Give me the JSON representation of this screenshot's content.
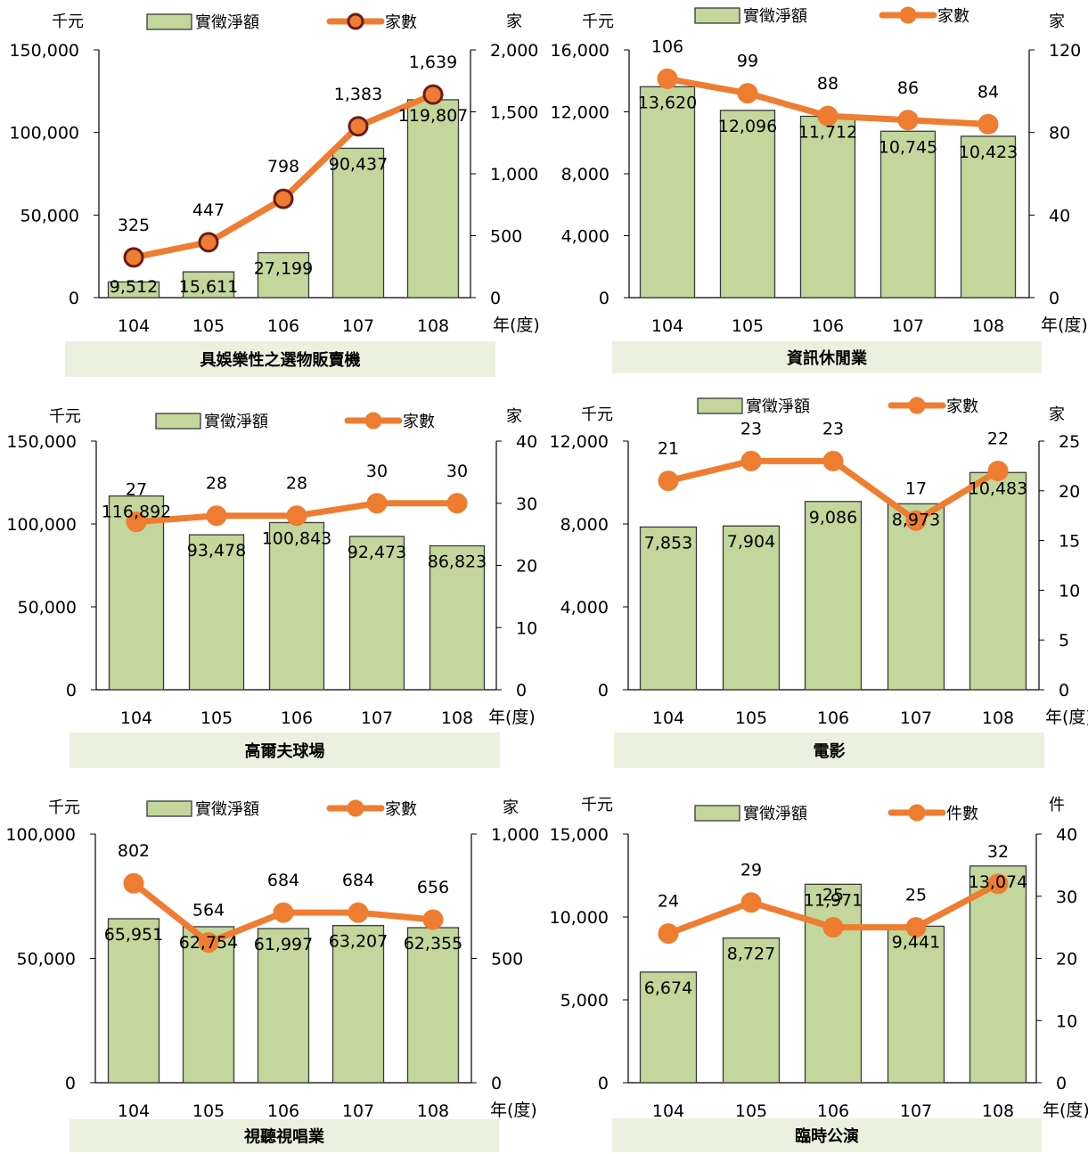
{
  "chart_data": [
    {
      "type": "bar",
      "title": "具娛樂性之選物販賣機",
      "categories": [
        "104",
        "105",
        "106",
        "107",
        "108"
      ],
      "series": [
        {
          "name": "實徵淨額",
          "type": "bar",
          "axis": "left",
          "values": [
            9512,
            15611,
            27199,
            90437,
            119807
          ],
          "labels": [
            "9,512",
            "15,611",
            "27,199",
            "90,437",
            "119,807"
          ]
        },
        {
          "name": "家數",
          "type": "line",
          "axis": "right",
          "values": [
            325,
            447,
            798,
            1383,
            1639
          ],
          "labels": [
            "325",
            "447",
            "798",
            "1,383",
            "1,639"
          ]
        }
      ],
      "y_left": {
        "unit": "千元",
        "ylim": [
          0,
          150000
        ],
        "ticks": [
          "0",
          "50,000",
          "100,000",
          "150,000"
        ]
      },
      "y_right": {
        "unit": "家",
        "ylim": [
          0,
          2000
        ],
        "ticks": [
          "0",
          "500",
          "1,000",
          "1,500",
          "2,000"
        ]
      },
      "x_unit": "年(度)",
      "marker_color": "#6b1b1b",
      "legend": "top"
    },
    {
      "type": "bar",
      "title": "資訊休閒業",
      "categories": [
        "104",
        "105",
        "106",
        "107",
        "108"
      ],
      "series": [
        {
          "name": "實徵淨額",
          "type": "bar",
          "axis": "left",
          "values": [
            13620,
            12096,
            11712,
            10745,
            10423
          ],
          "labels": [
            "13,620",
            "12,096",
            "11,712",
            "10,745",
            "10,423"
          ]
        },
        {
          "name": "家數",
          "type": "line",
          "axis": "right",
          "values": [
            106,
            99,
            88,
            86,
            84
          ],
          "labels": [
            "106",
            "99",
            "88",
            "86",
            "84"
          ]
        }
      ],
      "y_left": {
        "unit": "千元",
        "ylim": [
          0,
          16000
        ],
        "ticks": [
          "0",
          "4,000",
          "8,000",
          "12,000",
          "16,000"
        ]
      },
      "y_right": {
        "unit": "家",
        "ylim": [
          0,
          120
        ],
        "ticks": [
          "0",
          "40",
          "80",
          "120"
        ]
      },
      "x_unit": "年(度)",
      "marker_color": "#ee7d31",
      "legend": "top"
    },
    {
      "type": "bar",
      "title": "高爾夫球場",
      "categories": [
        "104",
        "105",
        "106",
        "107",
        "108"
      ],
      "series": [
        {
          "name": "實徵淨額",
          "type": "bar",
          "axis": "left",
          "values": [
            116892,
            93478,
            100843,
            92473,
            86823
          ],
          "labels": [
            "116,892",
            "93,478",
            "100,843",
            "92,473",
            "86,823"
          ]
        },
        {
          "name": "家數",
          "type": "line",
          "axis": "right",
          "values": [
            27,
            28,
            28,
            30,
            30
          ],
          "labels": [
            "27",
            "28",
            "28",
            "30",
            "30"
          ]
        }
      ],
      "y_left": {
        "unit": "千元",
        "ylim": [
          0,
          150000
        ],
        "ticks": [
          "0",
          "50,000",
          "100,000",
          "150,000"
        ]
      },
      "y_right": {
        "unit": "家",
        "ylim": [
          0,
          40
        ],
        "ticks": [
          "0",
          "10",
          "20",
          "30",
          "40"
        ]
      },
      "x_unit": "年(度)",
      "marker_color": "#ee7d31",
      "legend": "top"
    },
    {
      "type": "bar",
      "title": "電影",
      "categories": [
        "104",
        "105",
        "106",
        "107",
        "108"
      ],
      "series": [
        {
          "name": "實徵淨額",
          "type": "bar",
          "axis": "left",
          "values": [
            7853,
            7904,
            9086,
            8973,
            10483
          ],
          "labels": [
            "7,853",
            "7,904",
            "9,086",
            "8,973",
            "10,483"
          ]
        },
        {
          "name": "家數",
          "type": "line",
          "axis": "right",
          "values": [
            21,
            23,
            23,
            17,
            22
          ],
          "labels": [
            "21",
            "23",
            "23",
            "17",
            "22"
          ]
        }
      ],
      "y_left": {
        "unit": "千元",
        "ylim": [
          0,
          12000
        ],
        "ticks": [
          "0",
          "4,000",
          "8,000",
          "12,000"
        ]
      },
      "y_right": {
        "unit": "家",
        "ylim": [
          0,
          25
        ],
        "ticks": [
          "0",
          "5",
          "10",
          "15",
          "20",
          "25"
        ]
      },
      "x_unit": "年(度)",
      "marker_color": "#ee7d31",
      "legend": "top"
    },
    {
      "type": "bar",
      "title": "視聽視唱業",
      "categories": [
        "104",
        "105",
        "106",
        "107",
        "108"
      ],
      "series": [
        {
          "name": "實徵淨額",
          "type": "bar",
          "axis": "left",
          "values": [
            65951,
            62754,
            61997,
            63207,
            62355
          ],
          "labels": [
            "65,951",
            "62,754",
            "61,997",
            "63,207",
            "62,355"
          ]
        },
        {
          "name": "家數",
          "type": "line",
          "axis": "right",
          "values": [
            802,
            564,
            684,
            684,
            656
          ],
          "labels": [
            "802",
            "564",
            "684",
            "684",
            "656"
          ]
        }
      ],
      "y_left": {
        "unit": "千元",
        "ylim": [
          0,
          100000
        ],
        "ticks": [
          "0",
          "50,000",
          "100,000"
        ]
      },
      "y_right": {
        "unit": "家",
        "ylim": [
          0,
          1000
        ],
        "ticks": [
          "0",
          "500",
          "1,000"
        ]
      },
      "x_unit": "年(度)",
      "marker_color": "#ee7d31",
      "legend": "top"
    },
    {
      "type": "bar",
      "title": "臨時公演",
      "categories": [
        "104",
        "105",
        "106",
        "107",
        "108"
      ],
      "series": [
        {
          "name": "實徵淨額",
          "type": "bar",
          "axis": "left",
          "values": [
            6674,
            8727,
            11971,
            9441,
            13074
          ],
          "labels": [
            "6,674",
            "8,727",
            "11,971",
            "9,441",
            "13,074"
          ]
        },
        {
          "name": "件數",
          "type": "line",
          "axis": "right",
          "values": [
            24,
            29,
            25,
            25,
            32
          ],
          "labels": [
            "24",
            "29",
            "25",
            "25",
            "32"
          ]
        }
      ],
      "y_left": {
        "unit": "千元",
        "ylim": [
          0,
          15000
        ],
        "ticks": [
          "0",
          "5,000",
          "10,000",
          "15,000"
        ]
      },
      "y_right": {
        "unit": "件",
        "ylim": [
          0,
          40
        ],
        "ticks": [
          "0",
          "10",
          "20",
          "30",
          "40"
        ]
      },
      "x_unit": "年(度)",
      "marker_color": "#ee7d31",
      "legend": "top"
    }
  ],
  "colors": {
    "bar_fill": "#c3d69b",
    "bar_stroke": "#3a3a3a",
    "line": "#ee7d31",
    "title_bg": "#ebf1de",
    "axis": "#000000"
  }
}
